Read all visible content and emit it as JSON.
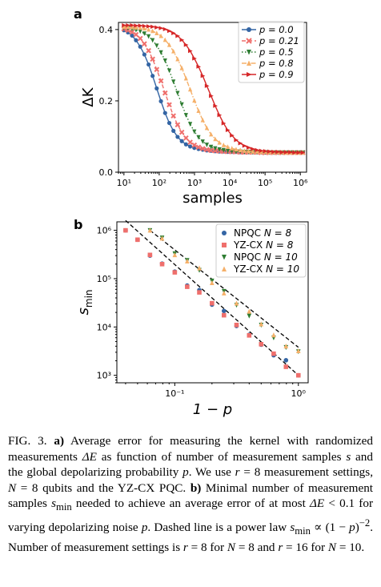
{
  "panel_a": {
    "label": "a",
    "chart_data": {
      "type": "line",
      "xlabel": "samples",
      "ylabel": "ΔK",
      "xscale": "log",
      "xlim": [
        7,
        1500000
      ],
      "ylim": [
        0,
        0.42
      ],
      "xticks": [
        "10¹",
        "10²",
        "10³",
        "10⁴",
        "10⁵",
        "10⁶"
      ],
      "yticks": [
        "0.0",
        "0.2",
        "0.4"
      ],
      "legend_position": "top-right",
      "series": [
        {
          "name": "p = 0.0",
          "color": "#3465a4",
          "marker": "circle",
          "linestyle": "solid",
          "x": [
            10,
            13,
            17,
            22,
            29,
            38,
            50,
            65,
            85,
            112,
            147,
            193,
            253,
            332,
            437,
            574,
            754,
            990,
            1300,
            1710,
            2240,
            2950,
            3870,
            5080,
            6670,
            8760,
            11500,
            15100,
            19800,
            26000,
            34200,
            44900,
            59000,
            77500,
            101700,
            133600,
            175400,
            230400,
            302600,
            397400,
            522000,
            685400,
            900200,
            1182000
          ],
          "y": [
            0.398,
            0.392,
            0.383,
            0.37,
            0.352,
            0.33,
            0.302,
            0.27,
            0.235,
            0.199,
            0.166,
            0.138,
            0.116,
            0.099,
            0.087,
            0.078,
            0.072,
            0.068,
            0.065,
            0.063,
            0.061,
            0.06,
            0.059,
            0.058,
            0.058,
            0.057,
            0.057,
            0.057,
            0.056,
            0.056,
            0.056,
            0.056,
            0.056,
            0.056,
            0.055,
            0.055,
            0.055,
            0.055,
            0.055,
            0.055,
            0.055,
            0.055,
            0.055,
            0.055
          ]
        },
        {
          "name": "p = 0.21",
          "color": "#ef6f6c",
          "marker": "x",
          "linestyle": "dashed",
          "x": [
            10,
            13,
            17,
            22,
            29,
            38,
            50,
            65,
            85,
            112,
            147,
            193,
            253,
            332,
            437,
            574,
            754,
            990,
            1300,
            1710,
            2240,
            2950,
            3870,
            5080,
            6670,
            8760,
            11500,
            15100,
            19800,
            26000,
            34200,
            44900,
            59000,
            77500,
            101700,
            133600,
            175400,
            230400,
            302600,
            397400,
            522000,
            685400,
            900200,
            1182000
          ],
          "y": [
            0.402,
            0.398,
            0.393,
            0.386,
            0.375,
            0.36,
            0.341,
            0.317,
            0.288,
            0.256,
            0.222,
            0.189,
            0.158,
            0.133,
            0.112,
            0.096,
            0.084,
            0.076,
            0.07,
            0.066,
            0.063,
            0.061,
            0.06,
            0.059,
            0.058,
            0.058,
            0.057,
            0.057,
            0.056,
            0.056,
            0.056,
            0.056,
            0.056,
            0.055,
            0.055,
            0.055,
            0.055,
            0.055,
            0.055,
            0.055,
            0.055,
            0.055,
            0.055,
            0.055
          ]
        },
        {
          "name": "p = 0.5",
          "color": "#2e7d32",
          "marker": "triangle-down",
          "linestyle": "dotted",
          "x": [
            10,
            13,
            17,
            22,
            29,
            38,
            50,
            65,
            85,
            112,
            147,
            193,
            253,
            332,
            437,
            574,
            754,
            990,
            1300,
            1710,
            2240,
            2950,
            3870,
            5080,
            6670,
            8760,
            11500,
            15100,
            19800,
            26000,
            34200,
            44900,
            59000,
            77500,
            101700,
            133600,
            175400,
            230400,
            302600,
            397400,
            522000,
            685400,
            900200,
            1182000
          ],
          "y": [
            0.405,
            0.404,
            0.402,
            0.399,
            0.395,
            0.389,
            0.381,
            0.37,
            0.355,
            0.336,
            0.313,
            0.285,
            0.254,
            0.222,
            0.19,
            0.16,
            0.135,
            0.114,
            0.098,
            0.086,
            0.077,
            0.071,
            0.067,
            0.064,
            0.062,
            0.06,
            0.059,
            0.058,
            0.058,
            0.057,
            0.057,
            0.056,
            0.056,
            0.056,
            0.056,
            0.055,
            0.055,
            0.055,
            0.055,
            0.055,
            0.055,
            0.055,
            0.055,
            0.055
          ]
        },
        {
          "name": "p = 0.8",
          "color": "#f5b06a",
          "marker": "triangle-up",
          "linestyle": "dashdot",
          "x": [
            10,
            13,
            17,
            22,
            29,
            38,
            50,
            65,
            85,
            112,
            147,
            193,
            253,
            332,
            437,
            574,
            754,
            990,
            1300,
            1710,
            2240,
            2950,
            3870,
            5080,
            6670,
            8760,
            11500,
            15100,
            19800,
            26000,
            34200,
            44900,
            59000,
            77500,
            101700,
            133600,
            175400,
            230400,
            302600,
            397400,
            522000,
            685400,
            900200,
            1182000
          ],
          "y": [
            0.408,
            0.408,
            0.407,
            0.406,
            0.405,
            0.403,
            0.4,
            0.396,
            0.39,
            0.382,
            0.371,
            0.357,
            0.339,
            0.317,
            0.292,
            0.263,
            0.232,
            0.201,
            0.172,
            0.146,
            0.124,
            0.106,
            0.093,
            0.083,
            0.076,
            0.071,
            0.067,
            0.064,
            0.062,
            0.06,
            0.059,
            0.058,
            0.058,
            0.057,
            0.057,
            0.056,
            0.056,
            0.056,
            0.056,
            0.055,
            0.055,
            0.055,
            0.055,
            0.055
          ]
        },
        {
          "name": "p = 0.9",
          "color": "#d62728",
          "marker": "triangle-right",
          "linestyle": "solid",
          "x": [
            10,
            13,
            17,
            22,
            29,
            38,
            50,
            65,
            85,
            112,
            147,
            193,
            253,
            332,
            437,
            574,
            754,
            990,
            1300,
            1710,
            2240,
            2950,
            3870,
            5080,
            6670,
            8760,
            11500,
            15100,
            19800,
            26000,
            34200,
            44900,
            59000,
            77500,
            101700,
            133600,
            175400,
            230400,
            302600,
            397400,
            522000,
            685400,
            900200,
            1182000
          ],
          "y": [
            0.412,
            0.412,
            0.412,
            0.411,
            0.411,
            0.41,
            0.409,
            0.408,
            0.406,
            0.404,
            0.401,
            0.396,
            0.39,
            0.382,
            0.371,
            0.357,
            0.34,
            0.319,
            0.296,
            0.27,
            0.242,
            0.214,
            0.186,
            0.16,
            0.137,
            0.118,
            0.103,
            0.09,
            0.081,
            0.074,
            0.069,
            0.065,
            0.062,
            0.06,
            0.059,
            0.058,
            0.057,
            0.057,
            0.056,
            0.056,
            0.056,
            0.055,
            0.055,
            0.055
          ]
        }
      ]
    }
  },
  "panel_b": {
    "label": "b",
    "chart_data": {
      "type": "scatter",
      "xlabel": "1 − p",
      "ylabel": "s_min",
      "ylabel_main": "s",
      "ylabel_sub": "min",
      "xscale": "log",
      "yscale": "log",
      "xlim": [
        0.034,
        1.2
      ],
      "ylim": [
        700,
        1500000
      ],
      "xticks": [
        "10⁻¹",
        "10⁰"
      ],
      "yticks": [
        "10³",
        "10⁴",
        "10⁵",
        "10⁶"
      ],
      "legend_position": "top-right",
      "series": [
        {
          "name": "NPQC",
          "name_math": "N = 8",
          "color": "#3465a4",
          "marker": "circle",
          "x": [
            0.04,
            0.05,
            0.063,
            0.079,
            0.1,
            0.126,
            0.158,
            0.2,
            0.25,
            0.316,
            0.4,
            0.5,
            0.631,
            0.794,
            1.0
          ],
          "y": [
            1000000,
            640000,
            300000,
            205000,
            140000,
            72000,
            58000,
            29000,
            21500,
            10500,
            6900,
            4300,
            2600,
            2050,
            1000
          ]
        },
        {
          "name": "YZ-CX",
          "name_math": "N = 8",
          "color": "#ef6f6c",
          "marker": "square",
          "x": [
            0.04,
            0.05,
            0.063,
            0.079,
            0.1,
            0.126,
            0.158,
            0.2,
            0.25,
            0.316,
            0.4,
            0.5,
            0.631,
            0.794,
            1.0
          ],
          "y": [
            1000000,
            640000,
            310000,
            200000,
            135000,
            68000,
            52000,
            31000,
            17500,
            11000,
            6700,
            4400,
            2800,
            1500,
            1000
          ]
        },
        {
          "name": "NPQC",
          "name_math": "N = 10",
          "color": "#2e7d32",
          "marker": "triangle-down",
          "x": [
            0.063,
            0.079,
            0.1,
            0.126,
            0.158,
            0.2,
            0.25,
            0.316,
            0.4,
            0.5,
            0.631,
            0.794,
            1.0
          ],
          "y": [
            1000000,
            700000,
            330000,
            240000,
            150000,
            90000,
            55000,
            28500,
            17000,
            11000,
            6000,
            3800,
            3100
          ]
        },
        {
          "name": "YZ-CX",
          "name_math": "N = 10",
          "color": "#f5b06a",
          "marker": "triangle-up",
          "x": [
            0.063,
            0.079,
            0.1,
            0.126,
            0.158,
            0.2,
            0.25,
            0.316,
            0.4,
            0.5,
            0.631,
            0.794,
            1.0
          ],
          "y": [
            1000000,
            680000,
            310000,
            230000,
            165000,
            82000,
            50000,
            31000,
            21000,
            11500,
            6800,
            4000,
            3200
          ]
        }
      ],
      "fit_lines": [
        {
          "style": "dashed",
          "color": "#000000",
          "x": [
            0.04,
            1.0
          ],
          "y": [
            1600000,
            1000
          ]
        },
        {
          "style": "dashed",
          "color": "#000000",
          "x": [
            0.063,
            1.0
          ],
          "y": [
            1000000,
            3800
          ]
        }
      ]
    }
  },
  "caption": {
    "label": "FIG. 3.",
    "html": " <b>a)</b> Average error for measuring the kernel with randomized measurements <i>ΔE</i> as function of number of measurement samples <i>s</i> and the global depolarizing probability <i>p</i>. We use <i>r</i> = 8 measurement settings, <i>N</i> = 8 qubits and the YZ-CX PQC. <b>b)</b> Minimal number of measurement samples <i>s</i><sub>min</sub> needed to achieve an average error of at most <i>ΔE</i> &lt; 0.1 for varying depolarizing noise <i>p</i>. Dashed line is a power law <i>s</i><sub>min</sub> ∝ (1 − <i>p</i>)<sup>−2</sup>. Number of measurement settings is <i>r</i> = 8 for <i>N</i> = 8 and <i>r</i> = 16 for <i>N</i> = 10."
  }
}
